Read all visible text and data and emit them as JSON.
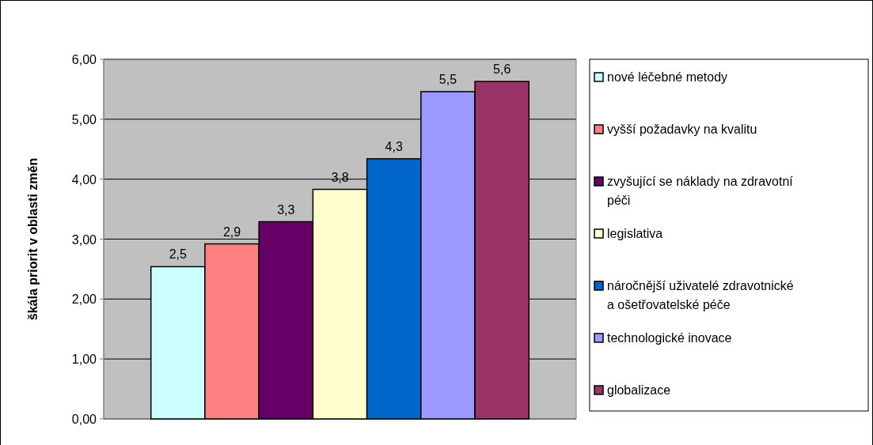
{
  "chart_data": {
    "type": "bar",
    "ylabel": "škála priorit v oblasti změn",
    "categories": [
      null
    ],
    "series": [
      {
        "name": "nové léčebné metody",
        "color": "#ccffff",
        "values": [
          2.54
        ],
        "value_labels": [
          "2,5"
        ]
      },
      {
        "name": "vyšší požadavky na kvalitu",
        "color": "#ff8080",
        "values": [
          2.92
        ],
        "value_labels": [
          "2,9"
        ]
      },
      {
        "name": "zvyšující se náklady na zdravotní péči",
        "color": "#660066",
        "values": [
          3.29
        ],
        "value_labels": [
          "3,3"
        ]
      },
      {
        "name": "legislativa",
        "color": "#ffffcc",
        "values": [
          3.83
        ],
        "value_labels": [
          "3,8"
        ]
      },
      {
        "name": "náročnější uživatelé zdravotnické a ošetřovatelské péče",
        "color": "#0066cc",
        "values": [
          4.34
        ],
        "value_labels": [
          "4,3"
        ]
      },
      {
        "name": "technologické inovace",
        "color": "#9999ff",
        "values": [
          5.46
        ],
        "value_labels": [
          "5,5"
        ]
      },
      {
        "name": "globalizace",
        "color": "#993366",
        "values": [
          5.63
        ],
        "value_labels": [
          "5,6"
        ]
      }
    ],
    "ylim": [
      0,
      6
    ],
    "yticks": [
      {
        "value": 0,
        "label": "0,00"
      },
      {
        "value": 1,
        "label": "1,00"
      },
      {
        "value": 2,
        "label": "2,00"
      },
      {
        "value": 3,
        "label": "3,00"
      },
      {
        "value": 4,
        "label": "4,00"
      },
      {
        "value": 5,
        "label": "5,00"
      },
      {
        "value": 6,
        "label": "6,00"
      }
    ],
    "grid": "y",
    "legend": "right"
  }
}
